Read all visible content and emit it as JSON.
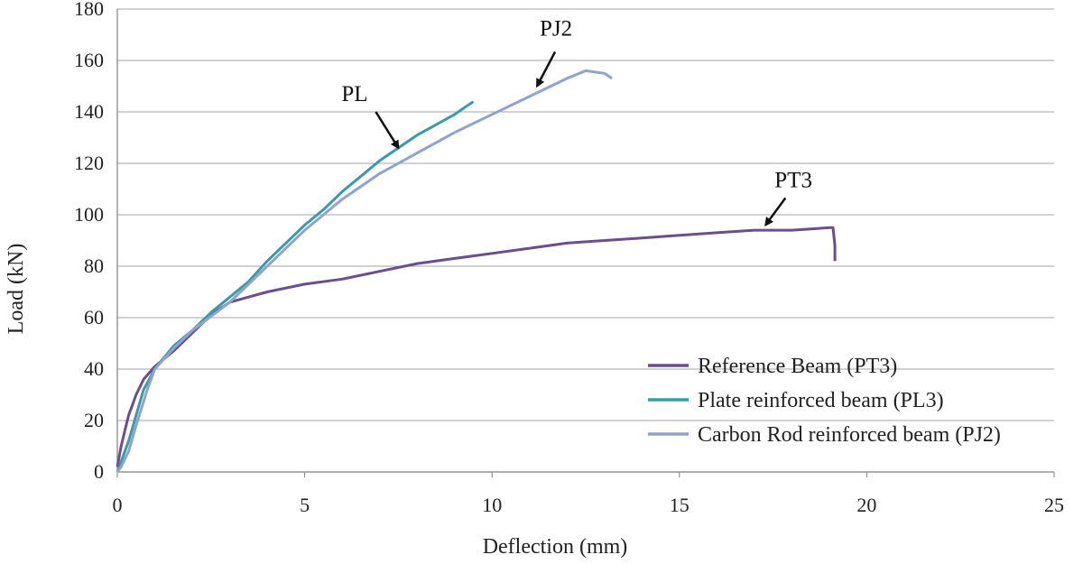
{
  "chart_data": {
    "type": "line",
    "xlabel": "Deflection (mm)",
    "ylabel": "Load (kN)",
    "xlim": [
      0,
      25
    ],
    "ylim": [
      0,
      180
    ],
    "xticks": [
      0,
      5,
      10,
      15,
      20,
      25
    ],
    "yticks": [
      0,
      20,
      40,
      60,
      80,
      100,
      120,
      140,
      160,
      180
    ],
    "grid": "horizontal",
    "legend_position": "bottom-right",
    "series": [
      {
        "name": "Reference Beam (PT3)",
        "color": "#6a4f8e",
        "x": [
          0,
          0.1,
          0.2,
          0.3,
          0.5,
          0.7,
          1.0,
          1.5,
          2.0,
          2.5,
          3.0,
          3.5,
          4.0,
          5.0,
          6.0,
          7.0,
          8.0,
          9.0,
          10.0,
          11.0,
          12.0,
          13.0,
          14.0,
          15.0,
          16.0,
          17.0,
          18.0,
          18.5,
          19.0,
          19.1,
          19.15,
          19.15
        ],
        "y": [
          2,
          10,
          16,
          22,
          30,
          36,
          41,
          47,
          54,
          61,
          66,
          68,
          70,
          73,
          75,
          78,
          81,
          83,
          85,
          87,
          89,
          90,
          91,
          92,
          93,
          94,
          94,
          94.5,
          95,
          95,
          88,
          82
        ]
      },
      {
        "name": "Plate reinforced beam (PL3)",
        "color": "#3a9aaa",
        "x": [
          0,
          0.1,
          0.3,
          0.5,
          0.7,
          1.0,
          1.5,
          2.0,
          2.5,
          3.0,
          3.5,
          4.0,
          4.5,
          5.0,
          5.5,
          6.0,
          6.5,
          7.0,
          7.5,
          8.0,
          8.5,
          9.0,
          9.3,
          9.5
        ],
        "y": [
          0,
          4,
          12,
          22,
          32,
          40,
          49,
          55,
          62,
          68,
          74,
          82,
          89,
          96,
          102,
          109,
          115,
          121,
          126,
          131,
          135,
          139,
          142,
          144
        ]
      },
      {
        "name": "Carbon Rod reinforced beam (PJ2)",
        "color": "#8ea4cc",
        "x": [
          0,
          0.1,
          0.3,
          0.5,
          0.8,
          1.0,
          1.5,
          2.0,
          3.0,
          4.0,
          5.0,
          6.0,
          7.0,
          8.0,
          9.0,
          10.0,
          11.0,
          12.0,
          12.5,
          13.0,
          13.2
        ],
        "y": [
          0,
          2,
          8,
          18,
          32,
          40,
          48,
          55,
          66,
          80,
          94,
          106,
          116,
          124,
          132,
          139,
          146,
          153,
          156,
          155,
          153
        ]
      }
    ],
    "annotations": [
      {
        "text": "PL",
        "x": 7.5,
        "y": 126
      },
      {
        "text": "PJ2",
        "x": 11.2,
        "y": 150
      },
      {
        "text": "PT3",
        "x": 17.3,
        "y": 96
      }
    ]
  }
}
